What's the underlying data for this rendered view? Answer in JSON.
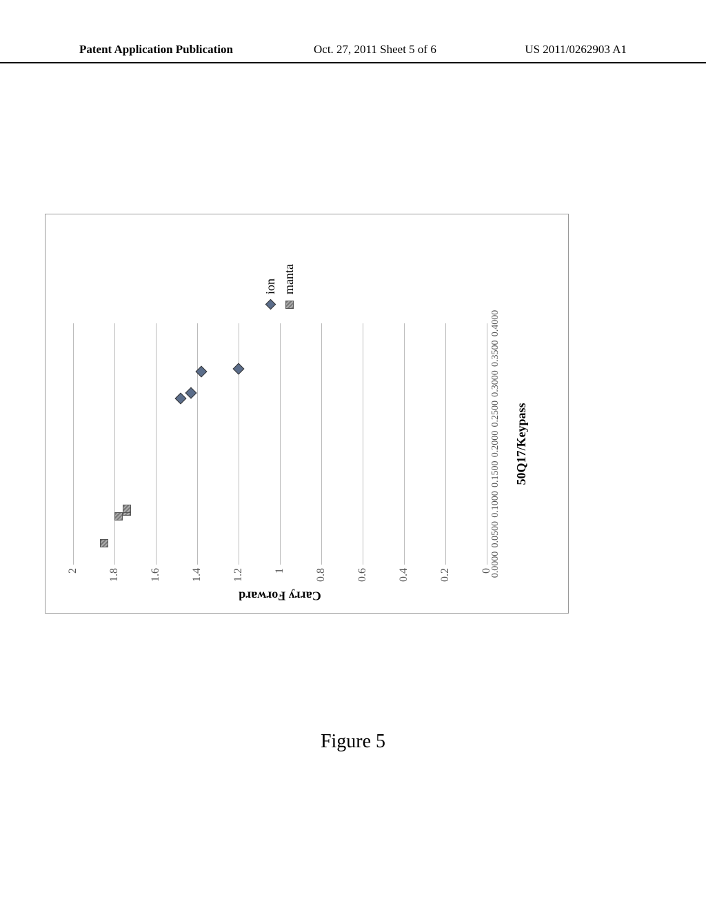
{
  "header": {
    "left": "Patent Application Publication",
    "center": "Oct. 27, 2011  Sheet 5 of 6",
    "right": "US 2011/0262903 A1"
  },
  "caption": "Figure 5",
  "chart": {
    "type": "scatter",
    "x_label": "50Q17/Keypass",
    "y_label": "Carry Forward",
    "xlim": [
      0.0,
      0.4
    ],
    "ylim": [
      0,
      2
    ],
    "x_ticks": [
      "0.0000",
      "0.0500",
      "0.1000",
      "0.1500",
      "0.2000",
      "0.2500",
      "0.3000",
      "0.3500",
      "0.4000"
    ],
    "y_ticks": [
      "0",
      "0.2",
      "0.4",
      "0.6",
      "0.8",
      "1",
      "1.2",
      "1.4",
      "1.6",
      "1.8",
      "2"
    ],
    "grid_color": "#bbbbbb",
    "background_color": "#ffffff",
    "border_color": "#999999",
    "label_fontsize": 18,
    "tick_fontsize": 14,
    "series": [
      {
        "name": "ion",
        "marker": "diamond",
        "color": "#5b6d8a",
        "points": [
          {
            "x": 0.275,
            "y": 1.48
          },
          {
            "x": 0.285,
            "y": 1.43
          },
          {
            "x": 0.32,
            "y": 1.38
          },
          {
            "x": 0.325,
            "y": 1.2
          }
        ]
      },
      {
        "name": "manta",
        "marker": "square",
        "color": "#999999",
        "points": [
          {
            "x": 0.035,
            "y": 1.85
          },
          {
            "x": 0.08,
            "y": 1.78
          },
          {
            "x": 0.088,
            "y": 1.74
          },
          {
            "x": 0.092,
            "y": 1.74
          }
        ]
      }
    ]
  }
}
